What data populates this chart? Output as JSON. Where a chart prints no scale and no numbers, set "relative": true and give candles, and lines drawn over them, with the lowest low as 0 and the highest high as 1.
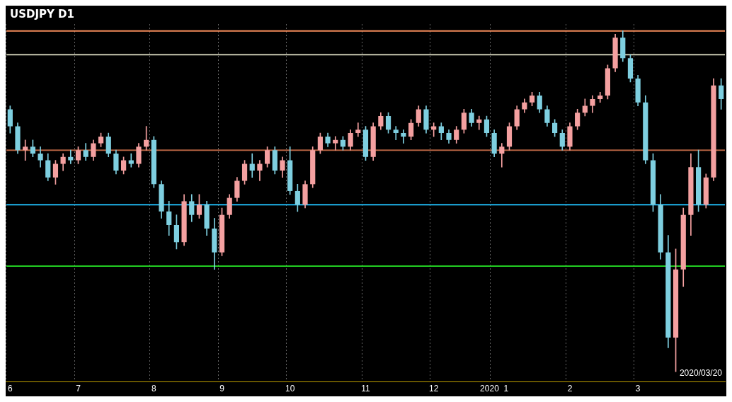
{
  "chart_data": {
    "type": "candlestick",
    "title": "USDJPY D1",
    "relative": true,
    "grid": "x",
    "categories": [
      "6",
      null,
      null,
      null,
      null,
      null,
      null,
      null,
      null,
      "7",
      null,
      null,
      null,
      null,
      null,
      null,
      null,
      null,
      null,
      "8",
      null,
      null,
      null,
      null,
      null,
      null,
      null,
      null,
      "9",
      null,
      null,
      null,
      null,
      null,
      null,
      null,
      null,
      "10",
      null,
      null,
      null,
      null,
      null,
      null,
      null,
      null,
      null,
      "11",
      null,
      null,
      null,
      null,
      null,
      null,
      null,
      null,
      "12",
      null,
      null,
      null,
      null,
      null,
      null,
      null,
      "2020  1",
      null,
      null,
      null,
      null,
      null,
      null,
      null,
      null,
      null,
      "2",
      null,
      null,
      null,
      null,
      null,
      null,
      null,
      null,
      "3",
      null,
      null,
      null,
      null,
      null,
      null,
      null,
      null,
      null,
      null,
      null
    ],
    "ohlc": [
      [
        0.77,
        0.78,
        0.7,
        0.72
      ],
      [
        0.72,
        0.73,
        0.64,
        0.65
      ],
      [
        0.65,
        0.68,
        0.62,
        0.66
      ],
      [
        0.66,
        0.68,
        0.63,
        0.64
      ],
      [
        0.64,
        0.66,
        0.6,
        0.62
      ],
      [
        0.62,
        0.64,
        0.56,
        0.57
      ],
      [
        0.57,
        0.62,
        0.55,
        0.61
      ],
      [
        0.61,
        0.64,
        0.59,
        0.63
      ],
      [
        0.63,
        0.65,
        0.61,
        0.62
      ],
      [
        0.62,
        0.66,
        0.61,
        0.65
      ],
      [
        0.65,
        0.67,
        0.62,
        0.63
      ],
      [
        0.63,
        0.68,
        0.62,
        0.67
      ],
      [
        0.67,
        0.7,
        0.66,
        0.69
      ],
      [
        0.69,
        0.7,
        0.63,
        0.64
      ],
      [
        0.64,
        0.65,
        0.58,
        0.59
      ],
      [
        0.59,
        0.63,
        0.58,
        0.62
      ],
      [
        0.62,
        0.64,
        0.6,
        0.61
      ],
      [
        0.61,
        0.67,
        0.6,
        0.66
      ],
      [
        0.66,
        0.72,
        0.65,
        0.68
      ],
      [
        0.68,
        0.69,
        0.54,
        0.55
      ],
      [
        0.55,
        0.56,
        0.45,
        0.47
      ],
      [
        0.47,
        0.5,
        0.4,
        0.43
      ],
      [
        0.43,
        0.46,
        0.36,
        0.38
      ],
      [
        0.38,
        0.52,
        0.37,
        0.5
      ],
      [
        0.5,
        0.52,
        0.44,
        0.46
      ],
      [
        0.46,
        0.52,
        0.45,
        0.49
      ],
      [
        0.49,
        0.5,
        0.4,
        0.42
      ],
      [
        0.42,
        0.45,
        0.3,
        0.35
      ],
      [
        0.35,
        0.48,
        0.34,
        0.46
      ],
      [
        0.46,
        0.52,
        0.45,
        0.51
      ],
      [
        0.51,
        0.57,
        0.5,
        0.56
      ],
      [
        0.56,
        0.62,
        0.55,
        0.61
      ],
      [
        0.61,
        0.64,
        0.57,
        0.59
      ],
      [
        0.59,
        0.62,
        0.56,
        0.61
      ],
      [
        0.61,
        0.66,
        0.6,
        0.65
      ],
      [
        0.65,
        0.66,
        0.58,
        0.59
      ],
      [
        0.59,
        0.63,
        0.57,
        0.62
      ],
      [
        0.62,
        0.66,
        0.52,
        0.53
      ],
      [
        0.53,
        0.55,
        0.47,
        0.49
      ],
      [
        0.49,
        0.56,
        0.48,
        0.55
      ],
      [
        0.55,
        0.66,
        0.54,
        0.65
      ],
      [
        0.65,
        0.7,
        0.64,
        0.69
      ],
      [
        0.69,
        0.7,
        0.66,
        0.67
      ],
      [
        0.67,
        0.69,
        0.65,
        0.68
      ],
      [
        0.68,
        0.69,
        0.65,
        0.66
      ],
      [
        0.66,
        0.71,
        0.65,
        0.7
      ],
      [
        0.7,
        0.73,
        0.69,
        0.71
      ],
      [
        0.71,
        0.72,
        0.62,
        0.63
      ],
      [
        0.63,
        0.73,
        0.62,
        0.72
      ],
      [
        0.72,
        0.76,
        0.71,
        0.75
      ],
      [
        0.75,
        0.76,
        0.7,
        0.71
      ],
      [
        0.71,
        0.72,
        0.68,
        0.7
      ],
      [
        0.7,
        0.71,
        0.67,
        0.69
      ],
      [
        0.69,
        0.74,
        0.68,
        0.73
      ],
      [
        0.73,
        0.78,
        0.72,
        0.77
      ],
      [
        0.77,
        0.78,
        0.7,
        0.71
      ],
      [
        0.71,
        0.73,
        0.69,
        0.72
      ],
      [
        0.72,
        0.73,
        0.68,
        0.7
      ],
      [
        0.7,
        0.71,
        0.67,
        0.68
      ],
      [
        0.68,
        0.72,
        0.67,
        0.71
      ],
      [
        0.71,
        0.77,
        0.7,
        0.76
      ],
      [
        0.76,
        0.77,
        0.72,
        0.73
      ],
      [
        0.73,
        0.75,
        0.71,
        0.74
      ],
      [
        0.74,
        0.75,
        0.69,
        0.7
      ],
      [
        0.7,
        0.71,
        0.63,
        0.64
      ],
      [
        0.64,
        0.67,
        0.6,
        0.66
      ],
      [
        0.66,
        0.73,
        0.65,
        0.72
      ],
      [
        0.72,
        0.78,
        0.71,
        0.77
      ],
      [
        0.77,
        0.8,
        0.76,
        0.79
      ],
      [
        0.79,
        0.82,
        0.78,
        0.81
      ],
      [
        0.81,
        0.82,
        0.76,
        0.77
      ],
      [
        0.77,
        0.78,
        0.72,
        0.73
      ],
      [
        0.73,
        0.74,
        0.69,
        0.7
      ],
      [
        0.7,
        0.71,
        0.65,
        0.66
      ],
      [
        0.66,
        0.73,
        0.65,
        0.72
      ],
      [
        0.72,
        0.77,
        0.71,
        0.76
      ],
      [
        0.76,
        0.8,
        0.75,
        0.78
      ],
      [
        0.78,
        0.81,
        0.76,
        0.8
      ],
      [
        0.8,
        0.82,
        0.79,
        0.81
      ],
      [
        0.81,
        0.9,
        0.8,
        0.89
      ],
      [
        0.89,
        0.99,
        0.88,
        0.98
      ],
      [
        0.98,
        1.0,
        0.91,
        0.92
      ],
      [
        0.92,
        0.93,
        0.85,
        0.86
      ],
      [
        0.86,
        0.87,
        0.78,
        0.79
      ],
      [
        0.79,
        0.81,
        0.61,
        0.62
      ],
      [
        0.62,
        0.64,
        0.47,
        0.49
      ],
      [
        0.49,
        0.52,
        0.33,
        0.35
      ],
      [
        0.35,
        0.4,
        0.07,
        0.1
      ],
      [
        0.1,
        0.36,
        0.0,
        0.3
      ],
      [
        0.3,
        0.48,
        0.25,
        0.46
      ],
      [
        0.46,
        0.64,
        0.4,
        0.6
      ],
      [
        0.6,
        0.65,
        0.47,
        0.49
      ],
      [
        0.49,
        0.58,
        0.48,
        0.57
      ],
      [
        0.57,
        0.86,
        0.56,
        0.84
      ],
      [
        0.84,
        0.86,
        0.77,
        0.8
      ]
    ],
    "ref_lines": [
      {
        "axis": "y",
        "value": 1.0,
        "color": "#f08a5a"
      },
      {
        "axis": "y",
        "value": 0.93,
        "color": "#c8c8b0"
      },
      {
        "axis": "y",
        "value": 0.65,
        "color": "#b06040"
      },
      {
        "axis": "y",
        "value": 0.49,
        "color": "#1eb4ec"
      },
      {
        "axis": "y",
        "value": 0.31,
        "color": "#22cc22"
      }
    ],
    "annotations": [
      "2020/03/20"
    ]
  }
}
